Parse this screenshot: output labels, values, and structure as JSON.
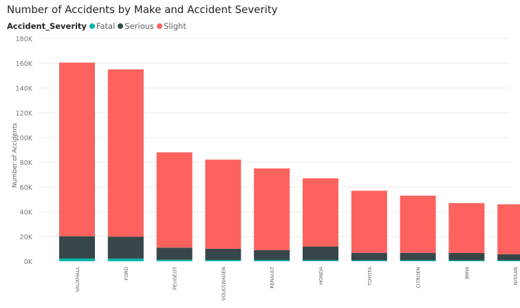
{
  "chart_data": {
    "type": "bar",
    "stacked": true,
    "title": "Number of Accidents by Make and Accident Severity",
    "legend_title": "Accident_Severity",
    "legend_position": "top-left",
    "xlabel": "",
    "ylabel": "Number of Accidents",
    "ylim": [
      0,
      180000
    ],
    "yticks": [
      0,
      20000,
      40000,
      60000,
      80000,
      100000,
      120000,
      140000,
      160000,
      180000
    ],
    "ytick_labels": [
      "0K",
      "20K",
      "40K",
      "60K",
      "80K",
      "100K",
      "120K",
      "140K",
      "160K",
      "180K"
    ],
    "grid": true,
    "categories": [
      "VAUXHALL",
      "FORD",
      "PEUGEOT",
      "VOLKSWAGEN",
      "RENAULT",
      "HONDA",
      "TOYOTA",
      "CITROEN",
      "BMW",
      "NISSAN"
    ],
    "series": [
      {
        "name": "Fatal",
        "color": "#01B8AA",
        "values": [
          2200,
          2100,
          1200,
          1100,
          1000,
          900,
          800,
          800,
          700,
          700
        ]
      },
      {
        "name": "Serious",
        "color": "#374649",
        "values": [
          18000,
          17800,
          9800,
          9000,
          8000,
          11000,
          6000,
          6000,
          6000,
          5000
        ]
      },
      {
        "name": "Slight",
        "color": "#FD625E",
        "values": [
          140300,
          135100,
          77000,
          72000,
          66000,
          55100,
          50200,
          46200,
          40300,
          40300
        ]
      }
    ]
  }
}
